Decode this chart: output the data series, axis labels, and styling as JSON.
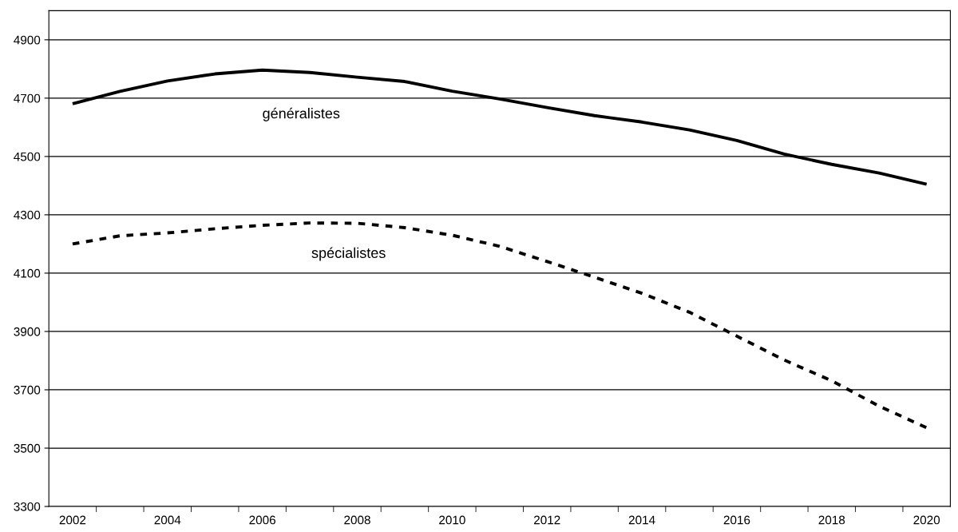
{
  "chart_data": {
    "type": "line",
    "categories": [
      "2002",
      null,
      "2004",
      null,
      "2006",
      null,
      "2008",
      null,
      "2010",
      null,
      "2012",
      null,
      "2014",
      null,
      "2016",
      null,
      "2018",
      null,
      "2020"
    ],
    "series": [
      {
        "name": "généralistes",
        "color": "#000000",
        "line_style": "solid",
        "values": [
          4681,
          4723,
          4759,
          4783,
          4796,
          4788,
          4772,
          4757,
          4724,
          4697,
          4668,
          4640,
          4618,
          4591,
          4555,
          4508,
          4473,
          4443,
          4405
        ]
      },
      {
        "name": "spécialistes",
        "color": "#000000",
        "line_style": "dashed",
        "values": [
          4200,
          4228,
          4238,
          4252,
          4264,
          4272,
          4271,
          4256,
          4230,
          4192,
          4140,
          4086,
          4031,
          3966,
          3884,
          3802,
          3731,
          3644,
          3570
        ]
      }
    ],
    "ylim": [
      3300,
      5000
    ],
    "yticks": [
      3300,
      3500,
      3700,
      3900,
      4100,
      4300,
      4500,
      4700,
      4900
    ],
    "grid": "y",
    "legend": false
  }
}
